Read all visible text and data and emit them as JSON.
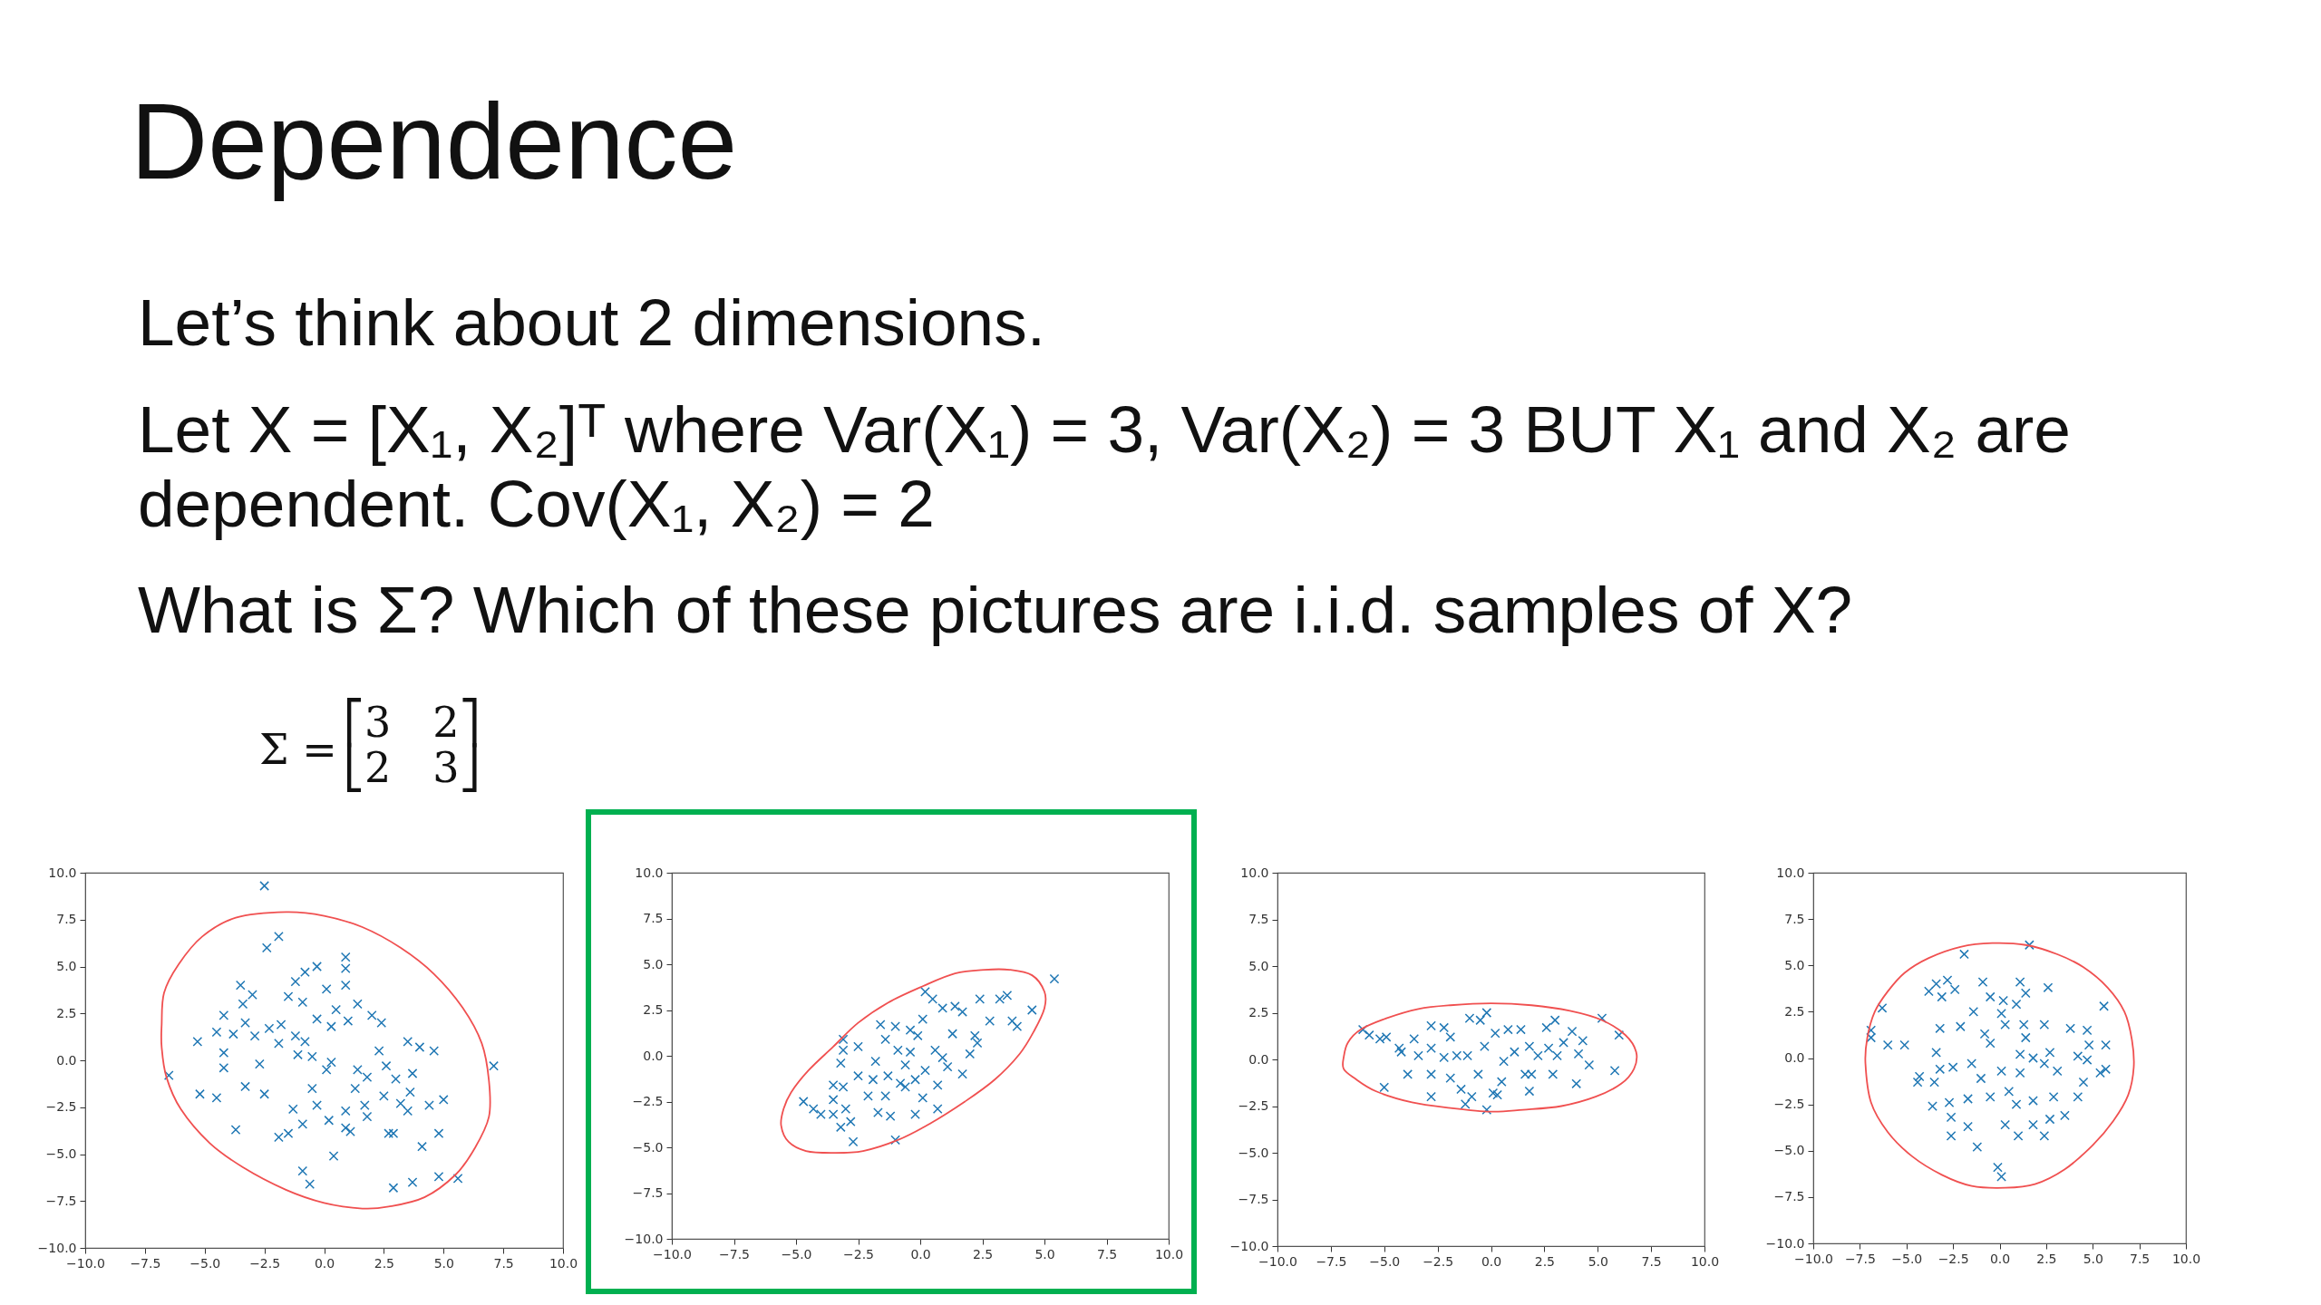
{
  "chart_data": [
    {
      "type": "other",
      "title": "Dependence",
      "annotations": [
        "Let’s think about 2 dimensions.",
        "Let X = [X₁, X₂]ᵀ where Var(X₁) = 3, Var(X₂) = 3 BUT X₁ and X₂ are\ndependent. Cov(X₁, X₂) = 2",
        "What is Σ? Which of these pictures are i.i.d. samples of X?",
        "Σ =",
        "⎡3 2⎤\n⎣2 3⎦"
      ]
    },
    {
      "type": "scatter",
      "xlim": [
        -10,
        10
      ],
      "ylim": [
        -10,
        10
      ],
      "grid": false,
      "xticks": [
        {
          "value": -10,
          "label": "−10.0"
        },
        {
          "value": -7.5,
          "label": "−7.5"
        },
        {
          "value": -5,
          "label": "−5.0"
        },
        {
          "value": -2.5,
          "label": "−2.5"
        },
        {
          "value": 0,
          "label": "0.0"
        },
        {
          "value": 2.5,
          "label": "2.5"
        },
        {
          "value": 5,
          "label": "5.0"
        },
        {
          "value": 7.5,
          "label": "7.5"
        },
        {
          "value": 10,
          "label": "10.0"
        }
      ],
      "yticks": [
        {
          "value": -10,
          "label": "−10.0"
        },
        {
          "value": -7.5,
          "label": "−7.5"
        },
        {
          "value": -5,
          "label": "−5.0"
        },
        {
          "value": -2.5,
          "label": "−2.5"
        },
        {
          "value": 0,
          "label": "0.0"
        },
        {
          "value": 2.5,
          "label": "2.5"
        },
        {
          "value": 5,
          "label": "5.0"
        },
        {
          "value": 7.5,
          "label": "7.5"
        },
        {
          "value": 10,
          "label": "10.0"
        }
      ],
      "series": [
        {
          "type": "scatter",
          "marker": "cross",
          "color": "#1f77b4",
          "x": [
            -2.5,
            -1.9,
            -2.4,
            0.9,
            0.9,
            0.9,
            -0.3,
            -0.8,
            -1.2,
            -3.5,
            -3.0,
            -3.4,
            -1.5,
            -0.9,
            0.1,
            1.4,
            -4.2,
            -3.3,
            -0.3,
            1.0,
            2.0,
            2.4,
            -4.5,
            -5.3,
            -3.8,
            -2.9,
            -2.3,
            -1.8,
            -1.9,
            -4.2,
            -4.2,
            -6.5,
            -5.2,
            -4.5,
            -3.7,
            -3.3,
            -2.7,
            -2.5,
            -1.9,
            -1.5,
            -0.9,
            -0.9,
            -0.6,
            0.4,
            0.2,
            -1.3,
            -0.3,
            -0.5,
            -1.1,
            -0.5,
            0.3,
            0.1,
            1.4,
            1.3,
            1.8,
            1.7,
            1.8,
            0.9,
            0.9,
            1.1,
            2.3,
            2.6,
            3.0,
            2.5,
            3.2,
            3.5,
            2.7,
            2.9,
            3.5,
            4.0,
            4.6,
            3.7,
            3.6,
            4.4,
            5.0,
            4.8,
            4.1,
            3.7,
            2.9,
            4.8,
            5.6,
            7.1,
            0.3,
            0.5,
            -1.2,
            -0.8
          ],
          "values": [
            9.3,
            6.6,
            6.0,
            5.5,
            4.9,
            4.0,
            5.0,
            4.7,
            4.2,
            4.0,
            3.5,
            3.0,
            3.4,
            3.1,
            3.8,
            3.0,
            2.4,
            2.0,
            2.2,
            2.1,
            2.4,
            2.0,
            1.5,
            1.0,
            1.4,
            1.3,
            1.7,
            1.9,
            0.9,
            0.4,
            -0.4,
            -0.8,
            -1.8,
            -2.0,
            -3.7,
            -1.4,
            -0.2,
            -1.8,
            -4.1,
            -3.9,
            -3.4,
            -5.9,
            -6.6,
            -5.1,
            -3.2,
            -2.6,
            -2.4,
            -1.5,
            0.3,
            0.2,
            -0.1,
            -0.5,
            -0.5,
            -1.5,
            -0.9,
            -2.4,
            -3.0,
            -2.7,
            -3.6,
            -3.8,
            0.5,
            -0.3,
            -1.0,
            -1.9,
            -2.3,
            -2.7,
            -3.9,
            -3.9,
            1.0,
            0.7,
            0.5,
            -0.7,
            -1.7,
            -2.4,
            -2.1,
            -3.9,
            -4.6,
            -6.5,
            -6.8,
            -6.2,
            -6.3,
            -0.3,
            1.8,
            2.7,
            1.3,
            1.0
          ]
        }
      ]
    },
    {
      "type": "scatter",
      "xlim": [
        -10,
        10
      ],
      "ylim": [
        -10,
        10
      ],
      "grid": false,
      "xticks": [
        {
          "value": -10,
          "label": "−10.0"
        },
        {
          "value": -7.5,
          "label": "−7.5"
        },
        {
          "value": -5,
          "label": "−5.0"
        },
        {
          "value": -2.5,
          "label": "−2.5"
        },
        {
          "value": 0,
          "label": "0.0"
        },
        {
          "value": 2.5,
          "label": "2.5"
        },
        {
          "value": 5,
          "label": "5.0"
        },
        {
          "value": 7.5,
          "label": "7.5"
        },
        {
          "value": 10,
          "label": "10.0"
        }
      ],
      "yticks": [
        {
          "value": -10,
          "label": "−10.0"
        },
        {
          "value": -7.5,
          "label": "−7.5"
        },
        {
          "value": -5,
          "label": "−5.0"
        },
        {
          "value": -2.5,
          "label": "−2.5"
        },
        {
          "value": 0,
          "label": "0.0"
        },
        {
          "value": 2.5,
          "label": "2.5"
        },
        {
          "value": 5,
          "label": "5.0"
        },
        {
          "value": 7.5,
          "label": "7.5"
        },
        {
          "value": 10,
          "label": "10.0"
        }
      ],
      "series": [
        {
          "type": "scatter",
          "marker": "cross",
          "color": "#1f77b4",
          "x": [
            5.4,
            4.5,
            3.5,
            3.2,
            2.4,
            3.9,
            3.7,
            2.8,
            2.2,
            2.0,
            1.7,
            1.4,
            0.9,
            0.5,
            0.2,
            0.1,
            -1.6,
            -1.0,
            -1.4,
            -3.1,
            -3.1,
            -2.5,
            -3.2,
            -1.8,
            -2.5,
            -3.5,
            -3.1,
            -3.5,
            -4.7,
            -4.3,
            -4.0,
            -3.5,
            -3.0,
            -2.8,
            -3.2,
            -2.7,
            -1.0,
            -1.2,
            -1.7,
            -0.2,
            0.7,
            -2.1,
            -1.4,
            -0.6,
            0.1,
            0.7,
            -0.6,
            -0.4,
            -0.9,
            0.2,
            0.6,
            0.9,
            1.3,
            1.7,
            1.1,
            -0.1,
            -0.4,
            2.3,
            -1.9,
            -1.3,
            -0.8,
            -0.2
          ],
          "values": [
            4.2,
            2.5,
            3.3,
            3.1,
            3.1,
            1.6,
            1.9,
            1.9,
            1.1,
            0.1,
            2.4,
            2.7,
            2.6,
            3.1,
            3.5,
            2.0,
            1.7,
            1.6,
            0.9,
            0.9,
            0.3,
            0.5,
            -0.4,
            -0.3,
            -1.1,
            -1.6,
            -1.7,
            -2.4,
            -2.5,
            -2.9,
            -3.2,
            -3.2,
            -2.9,
            -3.6,
            -3.9,
            -4.7,
            -4.6,
            -3.3,
            -3.1,
            -3.2,
            -2.9,
            -2.2,
            -2.2,
            -1.7,
            -2.3,
            -1.6,
            -0.5,
            0.2,
            0.3,
            -0.8,
            0.3,
            -0.1,
            1.2,
            -1.0,
            -0.6,
            1.1,
            1.4,
            0.7,
            -1.3,
            -1.1,
            -1.5,
            -1.3
          ]
        }
      ]
    },
    {
      "type": "scatter",
      "xlim": [
        -10,
        10
      ],
      "ylim": [
        -10,
        10
      ],
      "grid": false,
      "xticks": [
        {
          "value": -10,
          "label": "−10.0"
        },
        {
          "value": -7.5,
          "label": "−7.5"
        },
        {
          "value": -5,
          "label": "−5.0"
        },
        {
          "value": -2.5,
          "label": "−2.5"
        },
        {
          "value": 0,
          "label": "0.0"
        },
        {
          "value": 2.5,
          "label": "2.5"
        },
        {
          "value": 5,
          "label": "5.0"
        },
        {
          "value": 7.5,
          "label": "7.5"
        },
        {
          "value": 10,
          "label": "10.0"
        }
      ],
      "yticks": [
        {
          "value": -10,
          "label": "−10.0"
        },
        {
          "value": -7.5,
          "label": "−7.5"
        },
        {
          "value": -5,
          "label": "−5.0"
        },
        {
          "value": -2.5,
          "label": "−2.5"
        },
        {
          "value": 0,
          "label": "0.0"
        },
        {
          "value": 2.5,
          "label": "2.5"
        },
        {
          "value": 5,
          "label": "5.0"
        },
        {
          "value": 7.5,
          "label": "7.5"
        },
        {
          "value": 10,
          "label": "10.0"
        }
      ],
      "series": [
        {
          "type": "scatter",
          "marker": "cross",
          "color": "#1f77b4",
          "x": [
            -6.0,
            -5.7,
            -5.2,
            -4.9,
            -5.0,
            -4.3,
            -4.2,
            -3.9,
            -3.6,
            -3.4,
            -2.8,
            -2.8,
            -2.8,
            -2.8,
            -2.2,
            -1.9,
            -2.2,
            -1.9,
            -1.4,
            -1.2,
            -0.9,
            -1.0,
            -0.5,
            -0.2,
            -0.2,
            0.1,
            0.3,
            0.5,
            -0.6,
            -1.1,
            -0.3,
            0.2,
            0.8,
            1.4,
            1.1,
            0.6,
            1.8,
            1.8,
            1.6,
            1.9,
            2.6,
            3.0,
            2.7,
            3.1,
            2.9,
            3.8,
            4.3,
            4.1,
            4.0,
            4.6,
            5.2,
            6.0,
            5.8,
            3.4,
            2.2,
            -1.6
          ],
          "values": [
            1.6,
            1.3,
            1.1,
            1.2,
            -1.5,
            0.6,
            0.4,
            -0.8,
            1.1,
            0.2,
            1.8,
            0.6,
            -2.0,
            -0.8,
            1.7,
            1.2,
            0.1,
            -1.0,
            -1.6,
            -2.4,
            -2.0,
            2.2,
            2.1,
            2.5,
            -2.7,
            -1.8,
            -1.9,
            -1.2,
            -0.8,
            0.2,
            0.7,
            1.4,
            1.6,
            1.6,
            0.4,
            -0.1,
            0.7,
            -1.7,
            -0.8,
            -0.8,
            1.7,
            2.1,
            0.6,
            0.2,
            -0.8,
            1.5,
            1.0,
            0.3,
            -1.3,
            -0.3,
            2.2,
            1.3,
            -0.6,
            0.9,
            0.2,
            0.2
          ]
        }
      ]
    },
    {
      "type": "scatter",
      "xlim": [
        -10,
        10
      ],
      "ylim": [
        -10,
        10
      ],
      "grid": false,
      "xticks": [
        {
          "value": -10,
          "label": "−10.0"
        },
        {
          "value": -7.5,
          "label": "−7.5"
        },
        {
          "value": -5,
          "label": "−5.0"
        },
        {
          "value": -2.5,
          "label": "−2.5"
        },
        {
          "value": 0,
          "label": "0.0"
        },
        {
          "value": 2.5,
          "label": "2.5"
        },
        {
          "value": 5,
          "label": "5.0"
        },
        {
          "value": 7.5,
          "label": "7.5"
        },
        {
          "value": 10,
          "label": "10.0"
        }
      ],
      "yticks": [
        {
          "value": -10,
          "label": "−10.0"
        },
        {
          "value": -7.5,
          "label": "−7.5"
        },
        {
          "value": -5,
          "label": "−5.0"
        },
        {
          "value": -2.5,
          "label": "−2.5"
        },
        {
          "value": 0,
          "label": "0.0"
        },
        {
          "value": 2.5,
          "label": "2.5"
        },
        {
          "value": 5,
          "label": "5.0"
        },
        {
          "value": 7.5,
          "label": "7.5"
        },
        {
          "value": 10,
          "label": "10.0"
        }
      ],
      "series": [
        {
          "type": "scatter",
          "marker": "cross",
          "color": "#1f77b4",
          "x": [
            1.6,
            -1.9,
            -6.3,
            -6.9,
            -6.9,
            -6.0,
            -5.1,
            -3.8,
            -3.4,
            -2.8,
            -3.1,
            -2.4,
            -0.9,
            -0.5,
            1.1,
            1.4,
            2.6,
            0.9,
            0.2,
            0.1,
            -1.4,
            -3.2,
            -2.1,
            -0.8,
            0.3,
            1.3,
            2.4,
            5.6,
            3.8,
            4.7,
            4.8,
            5.7,
            4.2,
            4.7,
            5.7,
            5.4,
            4.5,
            4.2,
            3.5,
            2.7,
            2.4,
            1.8,
            1.0,
            0.3,
            -0.1,
            0.1,
            -1.2,
            -1.7,
            -2.6,
            -2.6,
            -3.6,
            -2.7,
            -3.5,
            -4.4,
            -4.3,
            -3.4,
            -3.2,
            -2.5,
            -1.5,
            -1.0,
            -0.5,
            -1.7,
            0.1,
            1.1,
            1.1,
            1.8,
            2.4,
            2.7,
            3.1,
            2.9,
            0.9,
            0.5,
            1.8,
            1.4,
            -0.5
          ],
          "values": [
            6.1,
            5.6,
            2.7,
            1.5,
            1.1,
            0.7,
            0.7,
            3.6,
            4.0,
            4.2,
            3.3,
            3.7,
            4.1,
            3.3,
            4.1,
            3.5,
            3.8,
            2.9,
            3.1,
            2.4,
            2.5,
            1.6,
            1.7,
            1.3,
            1.8,
            1.8,
            1.8,
            2.8,
            1.6,
            1.5,
            0.7,
            0.7,
            0.1,
            -0.1,
            -0.6,
            -0.8,
            -1.3,
            -2.1,
            -3.1,
            -3.3,
            -4.2,
            -3.6,
            -4.2,
            -3.6,
            -5.9,
            -6.4,
            -4.8,
            -3.7,
            -4.2,
            -3.2,
            -2.6,
            -2.4,
            -1.3,
            -1.3,
            -1.0,
            0.3,
            -0.6,
            -0.5,
            -0.3,
            -1.1,
            -2.1,
            -2.2,
            -0.7,
            -0.8,
            0.2,
            0.0,
            -0.3,
            0.3,
            -0.7,
            -2.1,
            -2.5,
            -1.8,
            -2.3,
            1.1,
            0.8
          ]
        }
      ]
    }
  ]
}
